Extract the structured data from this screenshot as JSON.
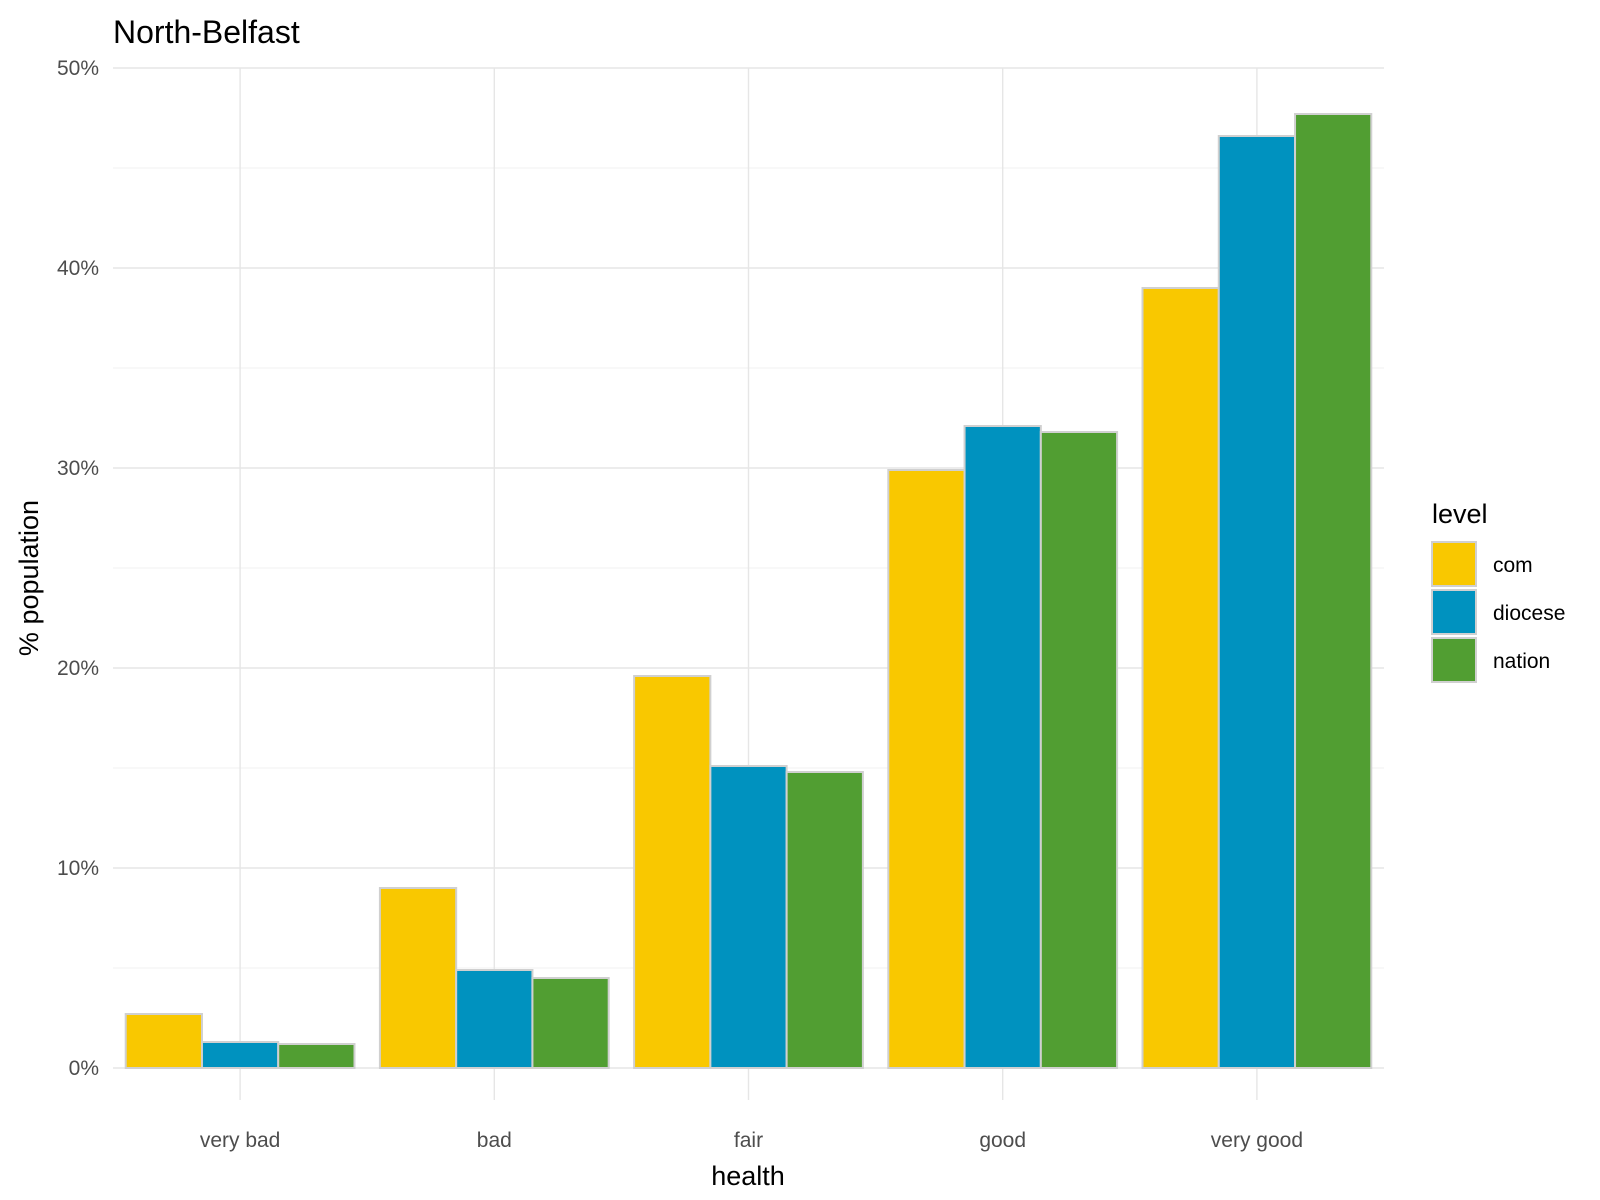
{
  "chart_data": {
    "type": "bar",
    "title": "North-Belfast",
    "xlabel": "health",
    "ylabel": "% population",
    "categories": [
      "very bad",
      "bad",
      "fair",
      "good",
      "very good"
    ],
    "series": [
      {
        "name": "com",
        "color": "#F9C800",
        "values": [
          2.7,
          9.0,
          19.6,
          29.9,
          39.0
        ]
      },
      {
        "name": "diocese",
        "color": "#0092BF",
        "values": [
          1.3,
          4.9,
          15.1,
          32.1,
          46.6
        ]
      },
      {
        "name": "nation",
        "color": "#519E32",
        "values": [
          1.2,
          4.5,
          14.8,
          31.8,
          47.7
        ]
      }
    ],
    "ylim": [
      0,
      50
    ],
    "yticks": [
      0,
      10,
      20,
      30,
      40,
      50
    ],
    "ytick_labels": [
      "0%",
      "10%",
      "20%",
      "30%",
      "40%",
      "50%"
    ],
    "grid": true,
    "legend": {
      "title": "level",
      "position": "right"
    }
  }
}
